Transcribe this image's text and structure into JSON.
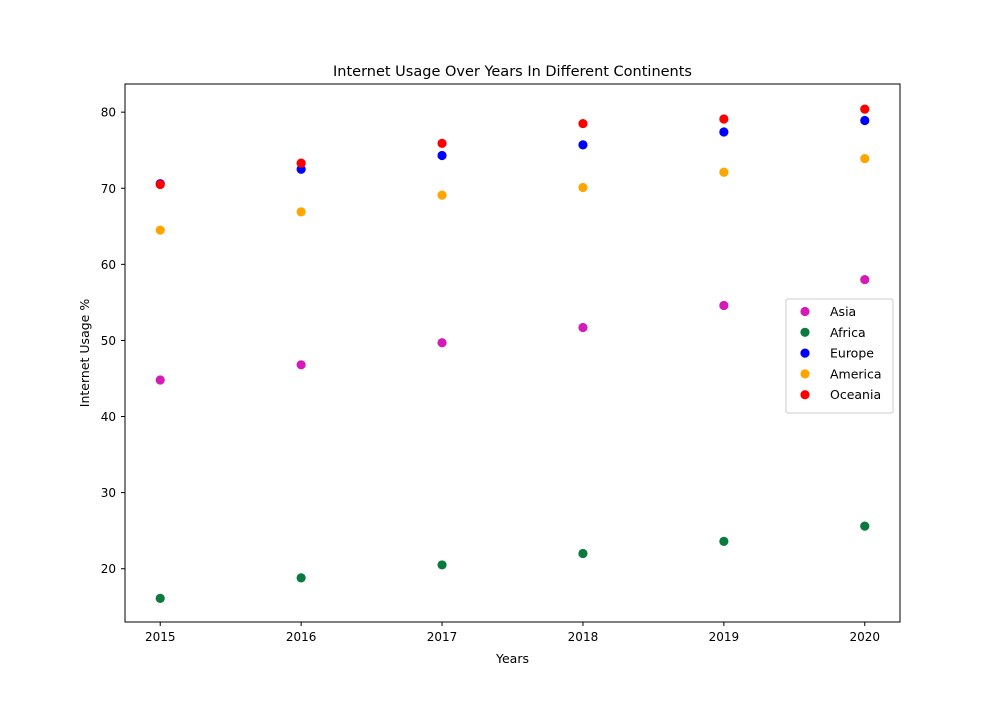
{
  "chart_data": {
    "type": "scatter",
    "title": "Internet Usage Over Years In Different Continents",
    "xlabel": "Years",
    "ylabel": "Internet Usage %",
    "x": [
      2015,
      2016,
      2017,
      2018,
      2019,
      2020
    ],
    "x_ticks": [
      "2015",
      "2016",
      "2017",
      "2018",
      "2019",
      "2020"
    ],
    "y_ticks": [
      20,
      30,
      40,
      50,
      60,
      70,
      80
    ],
    "xlim": [
      2014.75,
      2020.25
    ],
    "ylim": [
      13.0,
      83.7
    ],
    "grid": false,
    "legend_position": "center-right",
    "series": [
      {
        "name": "Asia",
        "color": "#d61ab8",
        "values": [
          44.8,
          46.8,
          49.7,
          51.7,
          54.6,
          58.0
        ]
      },
      {
        "name": "Africa",
        "color": "#0b7a3e",
        "values": [
          16.1,
          18.8,
          20.5,
          22.0,
          23.6,
          25.6
        ]
      },
      {
        "name": "Europe",
        "color": "#0000ff",
        "values": [
          70.6,
          72.5,
          74.3,
          75.7,
          77.4,
          78.9
        ]
      },
      {
        "name": "America",
        "color": "#ffa500",
        "values": [
          64.5,
          66.9,
          69.1,
          70.1,
          72.1,
          73.9
        ]
      },
      {
        "name": "Oceania",
        "color": "#ff0000",
        "values": [
          70.5,
          73.3,
          75.9,
          78.5,
          79.1,
          80.4
        ]
      }
    ]
  }
}
